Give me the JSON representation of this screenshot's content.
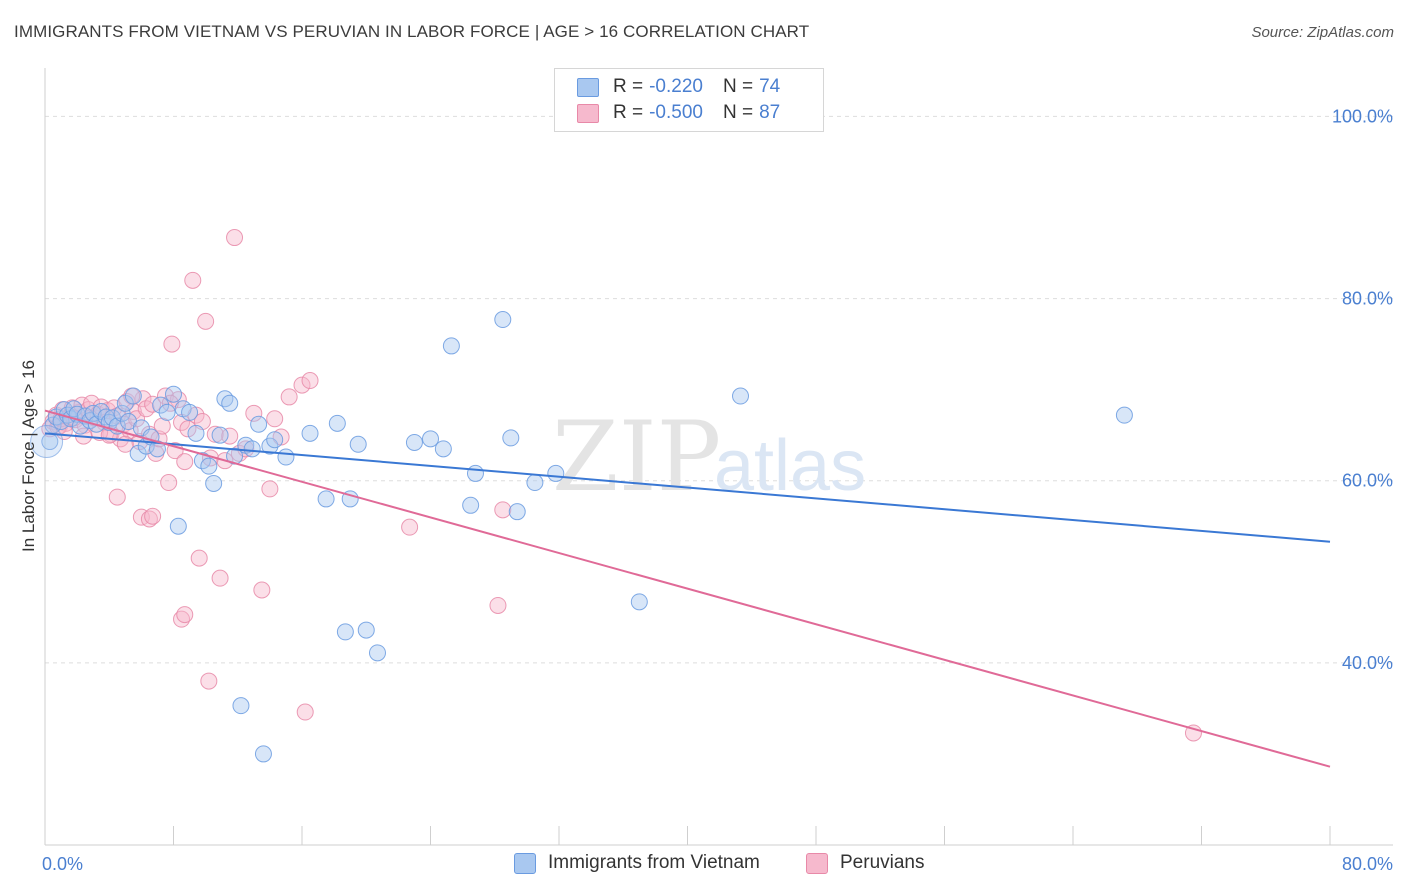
{
  "header": {
    "title": "IMMIGRANTS FROM VIETNAM VS PERUVIAN IN LABOR FORCE | AGE > 16 CORRELATION CHART",
    "source": "Source: ZipAtlas.com"
  },
  "legend": {
    "rows": [
      {
        "r_label": "R =",
        "r_value": "-0.220",
        "n_label": "N =",
        "n_value": "74"
      },
      {
        "r_label": "R =",
        "r_value": "-0.500",
        "n_label": "N =",
        "n_value": "87"
      }
    ]
  },
  "colors": {
    "blue_fill": "#a9c8f0",
    "blue_stroke": "#6a9be0",
    "blue_line": "#3a78d4",
    "pink_fill": "#f6b9cd",
    "pink_stroke": "#e889a8",
    "pink_line": "#e06a97",
    "tick_text": "#4a7fd0"
  },
  "chart_data": {
    "type": "scatter",
    "title": "IMMIGRANTS FROM VIETNAM VS PERUVIAN IN LABOR FORCE | AGE > 16 CORRELATION CHART",
    "xlabel": "",
    "ylabel": "In Labor Force | Age > 16",
    "xlim": [
      0,
      80
    ],
    "ylim": [
      20,
      104
    ],
    "x_tick_labels": [
      "0.0%",
      "80.0%"
    ],
    "y_ticks": [
      40,
      60,
      80,
      100
    ],
    "y_tick_labels": [
      "40.0%",
      "60.0%",
      "80.0%",
      "100.0%"
    ],
    "grid": true,
    "legend_position": "bottom-center",
    "watermark": "ZIPatlas",
    "series": [
      {
        "name": "Immigrants from Vietnam",
        "color": "blue",
        "trend": {
          "x": [
            0,
            80
          ],
          "y": [
            65.2,
            53.3
          ]
        },
        "points": [
          [
            0.3,
            64.3
          ],
          [
            0.5,
            66.1
          ],
          [
            0.7,
            67.0
          ],
          [
            1.0,
            66.5
          ],
          [
            1.2,
            67.8
          ],
          [
            1.4,
            67.2
          ],
          [
            1.6,
            66.8
          ],
          [
            1.8,
            67.9
          ],
          [
            2.0,
            67.3
          ],
          [
            2.2,
            66.0
          ],
          [
            2.5,
            67.1
          ],
          [
            2.8,
            66.6
          ],
          [
            3.0,
            67.4
          ],
          [
            3.2,
            66.2
          ],
          [
            3.5,
            67.6
          ],
          [
            3.8,
            67.0
          ],
          [
            4.0,
            66.4
          ],
          [
            4.2,
            66.9
          ],
          [
            4.5,
            66.0
          ],
          [
            4.8,
            67.4
          ],
          [
            5.0,
            68.5
          ],
          [
            5.2,
            66.5
          ],
          [
            5.5,
            69.3
          ],
          [
            5.8,
            63.0
          ],
          [
            6.0,
            65.8
          ],
          [
            6.3,
            63.8
          ],
          [
            6.6,
            64.8
          ],
          [
            7.0,
            63.5
          ],
          [
            7.2,
            68.3
          ],
          [
            7.6,
            67.5
          ],
          [
            8.0,
            69.5
          ],
          [
            8.3,
            55.0
          ],
          [
            8.6,
            67.9
          ],
          [
            9.0,
            67.5
          ],
          [
            9.4,
            65.2
          ],
          [
            9.8,
            62.2
          ],
          [
            10.2,
            61.6
          ],
          [
            10.5,
            59.7
          ],
          [
            10.9,
            65.0
          ],
          [
            11.2,
            69.0
          ],
          [
            11.5,
            68.5
          ],
          [
            11.8,
            62.7
          ],
          [
            12.2,
            35.3
          ],
          [
            12.5,
            63.9
          ],
          [
            12.9,
            63.5
          ],
          [
            13.3,
            66.2
          ],
          [
            13.6,
            30.0
          ],
          [
            14.0,
            63.8
          ],
          [
            14.3,
            64.5
          ],
          [
            15.0,
            62.6
          ],
          [
            16.5,
            65.2
          ],
          [
            17.5,
            58.0
          ],
          [
            18.2,
            66.3
          ],
          [
            18.7,
            43.4
          ],
          [
            19.0,
            58.0
          ],
          [
            19.5,
            64.0
          ],
          [
            20.0,
            43.6
          ],
          [
            20.7,
            41.1
          ],
          [
            23.0,
            64.2
          ],
          [
            24.0,
            64.6
          ],
          [
            24.8,
            63.5
          ],
          [
            25.3,
            74.8
          ],
          [
            26.5,
            57.3
          ],
          [
            26.8,
            60.8
          ],
          [
            28.5,
            77.7
          ],
          [
            29.0,
            64.7
          ],
          [
            29.4,
            56.6
          ],
          [
            30.5,
            59.8
          ],
          [
            31.8,
            60.8
          ],
          [
            37.0,
            46.7
          ],
          [
            43.3,
            69.3
          ],
          [
            67.2,
            67.2
          ]
        ]
      },
      {
        "name": "Peruvians",
        "color": "pink",
        "trend": {
          "x": [
            0,
            80
          ],
          "y": [
            67.7,
            28.6
          ]
        },
        "points": [
          [
            0.3,
            65.7
          ],
          [
            0.5,
            66.5
          ],
          [
            0.7,
            67.2
          ],
          [
            0.9,
            66.0
          ],
          [
            1.1,
            67.8
          ],
          [
            1.3,
            66.3
          ],
          [
            1.5,
            67.0
          ],
          [
            1.7,
            68.0
          ],
          [
            1.9,
            66.7
          ],
          [
            2.1,
            67.5
          ],
          [
            2.3,
            68.3
          ],
          [
            2.5,
            66.1
          ],
          [
            2.7,
            67.8
          ],
          [
            2.9,
            68.5
          ],
          [
            3.1,
            66.9
          ],
          [
            3.3,
            67.3
          ],
          [
            3.5,
            68.1
          ],
          [
            3.7,
            66.4
          ],
          [
            3.9,
            67.7
          ],
          [
            4.1,
            65.1
          ],
          [
            4.3,
            68.0
          ],
          [
            4.5,
            67.1
          ],
          [
            4.7,
            64.6
          ],
          [
            4.9,
            66.2
          ],
          [
            5.1,
            68.7
          ],
          [
            5.3,
            65.5
          ],
          [
            5.5,
            67.6
          ],
          [
            5.7,
            66.8
          ],
          [
            5.9,
            64.3
          ],
          [
            6.1,
            69.0
          ],
          [
            6.3,
            67.9
          ],
          [
            6.5,
            65.1
          ],
          [
            6.7,
            68.4
          ],
          [
            6.9,
            63.0
          ],
          [
            7.1,
            64.6
          ],
          [
            7.3,
            66.0
          ],
          [
            7.5,
            69.3
          ],
          [
            7.7,
            59.8
          ],
          [
            7.9,
            75.0
          ],
          [
            8.1,
            63.3
          ],
          [
            8.3,
            68.9
          ],
          [
            8.5,
            66.4
          ],
          [
            8.7,
            62.1
          ],
          [
            8.9,
            65.7
          ],
          [
            9.2,
            82.0
          ],
          [
            9.4,
            67.2
          ],
          [
            9.6,
            51.5
          ],
          [
            9.8,
            66.5
          ],
          [
            10.0,
            77.5
          ],
          [
            10.3,
            62.5
          ],
          [
            10.6,
            65.1
          ],
          [
            10.9,
            49.3
          ],
          [
            11.2,
            62.2
          ],
          [
            11.5,
            64.9
          ],
          [
            11.8,
            86.7
          ],
          [
            12.1,
            63.0
          ],
          [
            12.5,
            63.5
          ],
          [
            13.0,
            67.4
          ],
          [
            13.5,
            48.0
          ],
          [
            14.0,
            59.1
          ],
          [
            14.3,
            66.8
          ],
          [
            14.7,
            64.8
          ],
          [
            15.2,
            69.2
          ],
          [
            16.0,
            70.5
          ],
          [
            16.5,
            71.0
          ],
          [
            4.5,
            58.2
          ],
          [
            6.0,
            56.0
          ],
          [
            6.5,
            55.8
          ],
          [
            6.7,
            56.1
          ],
          [
            8.5,
            44.8
          ],
          [
            8.7,
            45.3
          ],
          [
            10.2,
            38.0
          ],
          [
            16.2,
            34.6
          ],
          [
            22.7,
            54.9
          ],
          [
            28.2,
            46.3
          ],
          [
            28.5,
            56.8
          ],
          [
            71.5,
            32.3
          ],
          [
            0.8,
            65.9
          ],
          [
            1.0,
            66.8
          ],
          [
            1.2,
            65.4
          ],
          [
            1.8,
            66.9
          ],
          [
            2.4,
            64.9
          ],
          [
            3.4,
            65.3
          ],
          [
            4.0,
            65.0
          ],
          [
            5.0,
            64.0
          ],
          [
            5.4,
            69.3
          ],
          [
            7.8,
            68.5
          ]
        ]
      }
    ]
  },
  "bottom_legend": {
    "items": [
      {
        "label": "Immigrants from Vietnam"
      },
      {
        "label": "Peruvians"
      }
    ]
  }
}
